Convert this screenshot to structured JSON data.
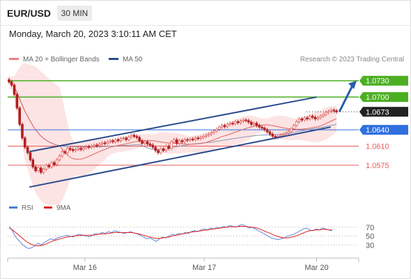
{
  "header": {
    "symbol": "EUR/USD",
    "timeframe": "30 MIN"
  },
  "datetime": "Monday, March 20, 2023 3:10:11 AM CET",
  "legend": {
    "ma20": {
      "label": "MA 20 + Bollinger Bands",
      "color": "#f08080"
    },
    "ma50": {
      "label": "MA 50",
      "color": "#2b4a8c"
    },
    "credit": "Research © 2023 Trading Central"
  },
  "rsi_legend": {
    "rsi": {
      "label": "RSI",
      "color": "#4b7bd4"
    },
    "ma9": {
      "label": "9MA",
      "color": "#e02020"
    }
  },
  "colors": {
    "resistance": "#4caf22",
    "pivot": "#2f6fe0",
    "support": "#e85a5a",
    "current": "#222222",
    "candle_up": "#e06060",
    "candle_down": "#b02020",
    "channel": "#2b4a8c",
    "band_fill": "#fde4e4",
    "arrow": "#2b5aa8"
  },
  "chart_data": [
    {
      "type": "candlestick",
      "title": "EUR/USD",
      "timeframe": "30 MIN",
      "x_ticks": [
        "Mar 16",
        "Mar 17",
        "Mar 20"
      ],
      "ylim": [
        1.0525,
        1.0745
      ],
      "levels": [
        {
          "label": "1.0730",
          "value": 1.073,
          "kind": "resistance"
        },
        {
          "label": "1.0700",
          "value": 1.07,
          "kind": "resistance"
        },
        {
          "label": "1.0673",
          "value": 1.0673,
          "kind": "current"
        },
        {
          "label": "1.0640",
          "value": 1.064,
          "kind": "pivot"
        },
        {
          "label": "1.0610",
          "value": 1.061,
          "kind": "support"
        },
        {
          "label": "1.0575",
          "value": 1.0575,
          "kind": "support"
        }
      ],
      "channel": {
        "upper": [
          [
            0.062,
            1.06
          ],
          [
            0.88,
            1.07
          ]
        ],
        "lower": [
          [
            0.062,
            1.0535
          ],
          [
            0.92,
            1.0645
          ]
        ]
      },
      "close": [
        1.0728,
        1.0722,
        1.0705,
        1.068,
        1.065,
        1.0625,
        1.0608,
        1.0598,
        1.0585,
        1.0572,
        1.0565,
        1.057,
        1.0562,
        1.0568,
        1.0575,
        1.0572,
        1.058,
        1.0576,
        1.0585,
        1.0592,
        1.06,
        1.0598,
        1.0606,
        1.0604,
        1.0602,
        1.0604,
        1.0606,
        1.0604,
        1.0607,
        1.0609,
        1.0608,
        1.061,
        1.0612,
        1.0611,
        1.0614,
        1.0616,
        1.0615,
        1.0618,
        1.062,
        1.0618,
        1.0622,
        1.062,
        1.0624,
        1.0625,
        1.0622,
        1.0627,
        1.063,
        1.0628,
        1.0626,
        1.062,
        1.0615,
        1.0618,
        1.0614,
        1.0612,
        1.0608,
        1.0602,
        1.0598,
        1.0605,
        1.0602,
        1.061,
        1.0606,
        1.0618,
        1.0622,
        1.0615,
        1.062,
        1.0618,
        1.0622,
        1.0621,
        1.0623,
        1.0622,
        1.0625,
        1.0624,
        1.0626,
        1.0628,
        1.063,
        1.0632,
        1.0635,
        1.0638,
        1.0641,
        1.0645,
        1.0648,
        1.0646,
        1.065,
        1.0652,
        1.0651,
        1.0655,
        1.0653,
        1.0656,
        1.0658,
        1.0657,
        1.0654,
        1.065,
        1.0652,
        1.0648,
        1.0645,
        1.0643,
        1.064,
        1.0636,
        1.0632,
        1.0628,
        1.0626,
        1.0628,
        1.063,
        1.0632,
        1.0634,
        1.0637,
        1.0642,
        1.0648,
        1.0655,
        1.066,
        1.0658,
        1.0662,
        1.066,
        1.0665,
        1.0663,
        1.066,
        1.0662,
        1.0665,
        1.0668,
        1.0672,
        1.0674,
        1.0676,
        1.0675,
        1.0673
      ],
      "rsi": {
        "ylim": [
          10,
          90
        ],
        "levels": [
          70,
          50,
          30
        ],
        "tick_labels": [
          "70",
          "50",
          "30"
        ],
        "rsi": [
          72,
          62,
          48,
          40,
          32,
          26,
          22,
          24,
          28,
          34,
          30,
          36,
          40,
          44,
          42,
          46,
          48,
          50,
          52,
          50,
          48,
          52,
          54,
          52,
          50,
          48,
          52,
          56,
          54,
          58,
          56,
          60,
          58,
          62,
          60,
          58,
          56,
          58,
          60,
          57,
          55,
          52,
          48,
          44,
          46,
          42,
          38,
          44,
          48,
          46,
          50,
          54,
          52,
          56,
          54,
          58,
          56,
          60,
          62,
          60,
          64,
          66,
          64,
          68,
          66,
          70,
          68,
          72,
          70,
          74,
          72,
          70,
          74,
          76,
          72,
          68,
          70,
          66,
          62,
          58,
          54,
          50,
          46,
          44,
          42,
          44,
          46,
          50,
          52,
          54,
          58,
          62,
          66,
          68,
          64,
          62,
          66,
          64,
          68,
          66,
          64,
          62
        ],
        "ma9": [
          68,
          64,
          58,
          52,
          46,
          40,
          35,
          31,
          29,
          28,
          29,
          31,
          34,
          37,
          40,
          42,
          44,
          46,
          48,
          49,
          50,
          51,
          51,
          52,
          52,
          52,
          52,
          53,
          54,
          55,
          55,
          56,
          57,
          58,
          58,
          58,
          58,
          58,
          58,
          57,
          56,
          54,
          52,
          50,
          48,
          46,
          45,
          45,
          46,
          47,
          48,
          50,
          52,
          53,
          55,
          56,
          58,
          59,
          60,
          61,
          62,
          63,
          64,
          65,
          66,
          67,
          68,
          69,
          70,
          71,
          71,
          71,
          72,
          72,
          72,
          71,
          70,
          69,
          67,
          64,
          61,
          58,
          55,
          52,
          49,
          47,
          46,
          46,
          47,
          49,
          51,
          54,
          57,
          60,
          62,
          63,
          64,
          64,
          65,
          65,
          64,
          64
        ]
      }
    }
  ]
}
